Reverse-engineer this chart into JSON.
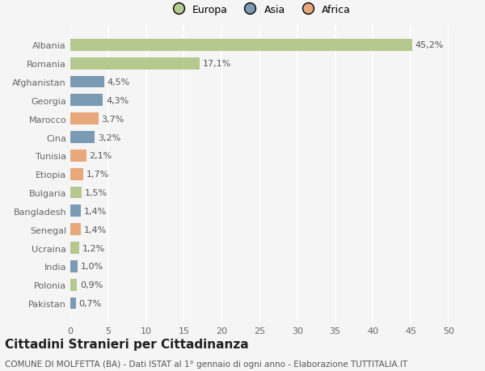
{
  "countries": [
    "Pakistan",
    "Polonia",
    "India",
    "Ucraina",
    "Senegal",
    "Bangladesh",
    "Bulgaria",
    "Etiopia",
    "Tunisia",
    "Cina",
    "Marocco",
    "Georgia",
    "Afghanistan",
    "Romania",
    "Albania"
  ],
  "values": [
    0.7,
    0.9,
    1.0,
    1.2,
    1.4,
    1.4,
    1.5,
    1.7,
    2.1,
    3.2,
    3.7,
    4.3,
    4.5,
    17.1,
    45.2
  ],
  "labels": [
    "0,7%",
    "0,9%",
    "1,0%",
    "1,2%",
    "1,4%",
    "1,4%",
    "1,5%",
    "1,7%",
    "2,1%",
    "3,2%",
    "3,7%",
    "4,3%",
    "4,5%",
    "17,1%",
    "45,2%"
  ],
  "colors": [
    "#7b9bb5",
    "#b5c98e",
    "#7b9bb5",
    "#b5c98e",
    "#e8a87c",
    "#7b9bb5",
    "#b5c98e",
    "#e8a87c",
    "#e8a87c",
    "#7b9bb5",
    "#e8a87c",
    "#7b9bb5",
    "#7b9bb5",
    "#b5c98e",
    "#b5c98e"
  ],
  "continent_colors": {
    "Europa": "#b5c98e",
    "Asia": "#7b9bb5",
    "Africa": "#e8a87c"
  },
  "xlim": [
    0,
    50
  ],
  "xticks": [
    0,
    5,
    10,
    15,
    20,
    25,
    30,
    35,
    40,
    45,
    50
  ],
  "title": "Cittadini Stranieri per Cittadinanza",
  "subtitle": "COMUNE DI MOLFETTA (BA) - Dati ISTAT al 1° gennaio di ogni anno - Elaborazione TUTTITALIA.IT",
  "bg_color": "#f5f5f5",
  "grid_color": "#ffffff",
  "label_fontsize": 8,
  "tick_fontsize": 8,
  "title_fontsize": 11,
  "subtitle_fontsize": 7.5,
  "bar_height": 0.65
}
